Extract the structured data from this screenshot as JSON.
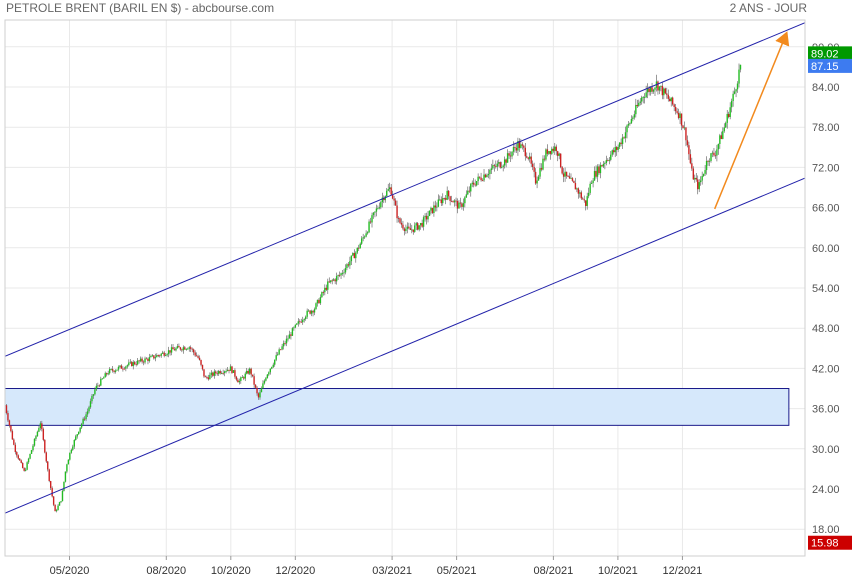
{
  "header": {
    "title": "PETROLE BRENT (BARIL EN $) - abcbourse.com",
    "period": "2 ANS - JOUR"
  },
  "chart_data": {
    "type": "candlestick",
    "ylim": [
      14,
      94
    ],
    "y_ticks": [
      "90.00",
      "84.00",
      "78.00",
      "72.00",
      "66.00",
      "60.00",
      "54.00",
      "48.00",
      "42.00",
      "36.00",
      "30.00",
      "24.00",
      "18.00"
    ],
    "y_tick_values": [
      90,
      84,
      78,
      72,
      66,
      60,
      54,
      48,
      42,
      36,
      30,
      24,
      18
    ],
    "x_ticks": [
      "05/2020",
      "08/2020",
      "10/2020",
      "12/2020",
      "03/2021",
      "05/2021",
      "08/2021",
      "10/2021",
      "12/2021"
    ],
    "x_tick_months": [
      4,
      7,
      9,
      11,
      14,
      16,
      19,
      21,
      23
    ],
    "x_range_months": [
      2,
      26.8
    ],
    "price_path": [
      {
        "t": 2.0,
        "p": 36.5
      },
      {
        "t": 2.3,
        "p": 30.0
      },
      {
        "t": 2.6,
        "p": 26.5
      },
      {
        "t": 2.9,
        "p": 31.0
      },
      {
        "t": 3.1,
        "p": 34.0
      },
      {
        "t": 3.35,
        "p": 26.0
      },
      {
        "t": 3.55,
        "p": 20.5
      },
      {
        "t": 3.75,
        "p": 22.5
      },
      {
        "t": 3.9,
        "p": 27.5
      },
      {
        "t": 4.05,
        "p": 30.0
      },
      {
        "t": 4.3,
        "p": 33.0
      },
      {
        "t": 4.55,
        "p": 35.5
      },
      {
        "t": 4.8,
        "p": 39.0
      },
      {
        "t": 5.2,
        "p": 41.5
      },
      {
        "t": 5.8,
        "p": 42.5
      },
      {
        "t": 6.5,
        "p": 43.5
      },
      {
        "t": 7.2,
        "p": 44.8
      },
      {
        "t": 7.7,
        "p": 45.3
      },
      {
        "t": 8.0,
        "p": 43.5
      },
      {
        "t": 8.2,
        "p": 40.5
      },
      {
        "t": 8.6,
        "p": 41.5
      },
      {
        "t": 9.0,
        "p": 42.0
      },
      {
        "t": 9.25,
        "p": 40.0
      },
      {
        "t": 9.6,
        "p": 41.8
      },
      {
        "t": 9.85,
        "p": 37.5
      },
      {
        "t": 10.1,
        "p": 41.0
      },
      {
        "t": 10.5,
        "p": 44.5
      },
      {
        "t": 10.9,
        "p": 47.5
      },
      {
        "t": 11.3,
        "p": 50.0
      },
      {
        "t": 11.6,
        "p": 51.0
      },
      {
        "t": 12.0,
        "p": 54.5
      },
      {
        "t": 12.4,
        "p": 56.0
      },
      {
        "t": 12.9,
        "p": 59.5
      },
      {
        "t": 13.3,
        "p": 63.5
      },
      {
        "t": 13.7,
        "p": 67.5
      },
      {
        "t": 13.95,
        "p": 69.0
      },
      {
        "t": 14.2,
        "p": 64.0
      },
      {
        "t": 14.5,
        "p": 62.5
      },
      {
        "t": 14.9,
        "p": 63.5
      },
      {
        "t": 15.3,
        "p": 66.0
      },
      {
        "t": 15.7,
        "p": 68.0
      },
      {
        "t": 16.1,
        "p": 66.0
      },
      {
        "t": 16.5,
        "p": 69.5
      },
      {
        "t": 17.0,
        "p": 71.5
      },
      {
        "t": 17.5,
        "p": 73.0
      },
      {
        "t": 17.9,
        "p": 75.5
      },
      {
        "t": 18.2,
        "p": 74.0
      },
      {
        "t": 18.45,
        "p": 70.0
      },
      {
        "t": 18.8,
        "p": 74.5
      },
      {
        "t": 19.1,
        "p": 75.0
      },
      {
        "t": 19.3,
        "p": 71.0
      },
      {
        "t": 19.7,
        "p": 69.0
      },
      {
        "t": 20.0,
        "p": 66.5
      },
      {
        "t": 20.2,
        "p": 70.5
      },
      {
        "t": 20.6,
        "p": 73.0
      },
      {
        "t": 21.0,
        "p": 75.0
      },
      {
        "t": 21.4,
        "p": 79.0
      },
      {
        "t": 21.8,
        "p": 83.0
      },
      {
        "t": 22.2,
        "p": 84.5
      },
      {
        "t": 22.6,
        "p": 82.0
      },
      {
        "t": 22.9,
        "p": 80.0
      },
      {
        "t": 23.1,
        "p": 77.0
      },
      {
        "t": 23.3,
        "p": 71.0
      },
      {
        "t": 23.5,
        "p": 69.0
      },
      {
        "t": 23.8,
        "p": 73.5
      },
      {
        "t": 24.0,
        "p": 74.0
      },
      {
        "t": 24.3,
        "p": 78.0
      },
      {
        "t": 24.6,
        "p": 83.0
      },
      {
        "t": 24.8,
        "p": 87.2
      }
    ],
    "channel": {
      "upper": [
        {
          "t": 2.0,
          "p": 43.8
        },
        {
          "t": 26.8,
          "p": 93.6
        }
      ],
      "lower": [
        {
          "t": 2.0,
          "p": 20.4
        },
        {
          "t": 26.8,
          "p": 70.4
        }
      ]
    },
    "zone": {
      "low": 33.5,
      "high": 39.0,
      "t_start": 2.0,
      "t_end": 26.3
    },
    "projection": {
      "from": {
        "t": 24.0,
        "p": 65.8
      },
      "to": {
        "t": 26.2,
        "p": 91.7
      }
    },
    "badges": [
      {
        "label": "89.02",
        "value": 89.02,
        "color": "#009900"
      },
      {
        "label": "87.15",
        "value": 87.15,
        "color": "#3d7bf0"
      },
      {
        "label": "15.98",
        "value": 15.98,
        "color": "#cc0000"
      }
    ],
    "colors": {
      "up": "#22bb22",
      "down": "#cc2222",
      "channel": "#2222aa",
      "zone_fill": "#d6e8fb",
      "zone_stroke": "#1a1a8a",
      "projection": "#f28a1e"
    }
  }
}
